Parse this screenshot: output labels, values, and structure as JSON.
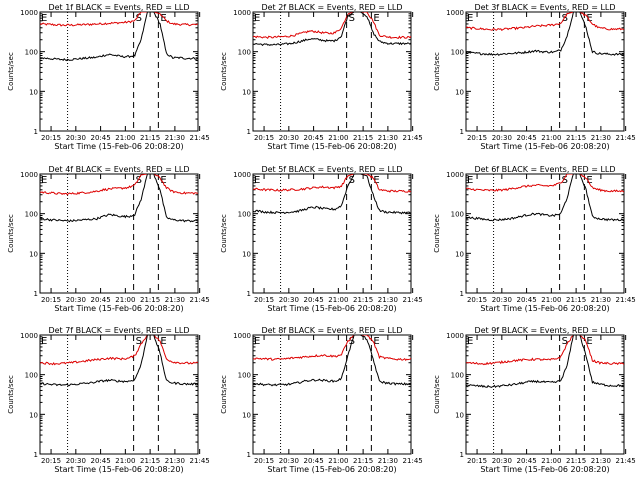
{
  "figure": {
    "x_label": "Start Time (15-Feb-06 20:08:20)",
    "y_label": "Counts/sec",
    "marker_labels": {
      "start": "S",
      "end": "E"
    },
    "colors": {
      "events": "#000000",
      "lld": "#dd0000",
      "axes": "#000000"
    }
  },
  "chart_data": [
    {
      "type": "line",
      "title": "Det 1f BLACK = Events, RED = LLD",
      "ylabel": "Counts/sec",
      "xlabel": "Start Time (15-Feb-06 20:08:20)",
      "y_scale": "log",
      "ylim": [
        1,
        1000
      ],
      "yticks": [
        "1",
        "10",
        "100",
        "1000"
      ],
      "x_minutes_range": [
        8.3,
        104
      ],
      "xticks": [
        "20:15",
        "20:30",
        "20:45",
        "21:00",
        "21:15",
        "21:30",
        "21:45"
      ],
      "vlines": {
        "dotted": [
          "20:25"
        ],
        "dashed": [
          "21:05",
          "21:20"
        ]
      },
      "peak": {
        "start": "21:06",
        "end": "21:20"
      },
      "series": [
        {
          "color": "#dd0000",
          "values": [
            500,
            490,
            480,
            470,
            465,
            470,
            475,
            480,
            490,
            500,
            510,
            520,
            530,
            540,
            560,
            600,
            1000,
            1000,
            1000,
            900,
            600,
            500,
            490,
            480,
            480,
            480
          ]
        },
        {
          "color": "#000000",
          "values": [
            70,
            68,
            66,
            64,
            63,
            64,
            66,
            68,
            70,
            72,
            80,
            85,
            80,
            75,
            75,
            80,
            200,
            1000,
            1000,
            500,
            90,
            70,
            70,
            68,
            68,
            68
          ]
        }
      ]
    },
    {
      "type": "line",
      "title": "Det 2f BLACK = Events, RED = LLD",
      "ylabel": "Counts/sec",
      "xlabel": "Start Time (15-Feb-06 20:08:20)",
      "y_scale": "log",
      "ylim": [
        1,
        1000
      ],
      "yticks": [
        "1",
        "10",
        "100",
        "1000"
      ],
      "x_minutes_range": [
        8.3,
        104
      ],
      "xticks": [
        "20:15",
        "20:30",
        "20:45",
        "21:00",
        "21:15",
        "21:30",
        "21:45"
      ],
      "vlines": {
        "dotted": [
          "20:25"
        ],
        "dashed": [
          "21:05",
          "21:20"
        ]
      },
      "peak": {
        "start": "21:04",
        "end": "21:20"
      },
      "series": [
        {
          "color": "#dd0000",
          "values": [
            240,
            235,
            230,
            230,
            235,
            240,
            250,
            270,
            300,
            330,
            320,
            300,
            290,
            300,
            400,
            900,
            1000,
            1000,
            1000,
            600,
            260,
            240,
            230,
            230,
            230,
            230
          ]
        },
        {
          "color": "#000000",
          "values": [
            160,
            155,
            150,
            150,
            150,
            155,
            160,
            175,
            190,
            210,
            205,
            195,
            185,
            190,
            250,
            800,
            1000,
            1000,
            800,
            300,
            180,
            165,
            160,
            160,
            160,
            160
          ]
        }
      ]
    },
    {
      "type": "line",
      "title": "Det 3f BLACK = Events, RED = LLD",
      "ylabel": "Counts/sec",
      "xlabel": "Start Time (15-Feb-06 20:08:20)",
      "y_scale": "log",
      "ylim": [
        1,
        1000
      ],
      "yticks": [
        "1",
        "10",
        "100",
        "1000"
      ],
      "x_minutes_range": [
        8.3,
        104
      ],
      "xticks": [
        "20:15",
        "20:30",
        "20:45",
        "21:00",
        "21:15",
        "21:30",
        "21:45"
      ],
      "vlines": {
        "dotted": [
          "20:25"
        ],
        "dashed": [
          "21:05",
          "21:20"
        ]
      },
      "peak": {
        "start": "21:06",
        "end": "21:20"
      },
      "series": [
        {
          "color": "#dd0000",
          "values": [
            400,
            390,
            380,
            370,
            360,
            365,
            370,
            380,
            390,
            400,
            420,
            440,
            450,
            460,
            480,
            520,
            900,
            1000,
            1000,
            800,
            500,
            400,
            380,
            370,
            370,
            370
          ]
        },
        {
          "color": "#000000",
          "values": [
            95,
            92,
            90,
            88,
            86,
            86,
            88,
            90,
            92,
            95,
            100,
            105,
            100,
            98,
            98,
            110,
            250,
            1000,
            1000,
            400,
            100,
            90,
            88,
            86,
            86,
            86
          ]
        }
      ]
    },
    {
      "type": "line",
      "title": "Det 4f BLACK = Events, RED = LLD",
      "ylabel": "Counts/sec",
      "xlabel": "Start Time (15-Feb-06 20:08:20)",
      "y_scale": "log",
      "ylim": [
        1,
        1000
      ],
      "yticks": [
        "1",
        "10",
        "100",
        "1000"
      ],
      "x_minutes_range": [
        8.3,
        104
      ],
      "xticks": [
        "20:15",
        "20:30",
        "20:45",
        "21:00",
        "21:15",
        "21:30",
        "21:45"
      ],
      "vlines": {
        "dotted": [
          "20:25"
        ],
        "dashed": [
          "21:05",
          "21:20"
        ]
      },
      "peak": {
        "start": "21:06",
        "end": "21:20"
      },
      "series": [
        {
          "color": "#dd0000",
          "values": [
            350,
            340,
            330,
            320,
            315,
            320,
            330,
            340,
            350,
            370,
            400,
            420,
            430,
            440,
            460,
            520,
            950,
            1000,
            1000,
            800,
            450,
            360,
            340,
            330,
            330,
            330
          ]
        },
        {
          "color": "#000000",
          "values": [
            75,
            72,
            70,
            68,
            66,
            66,
            68,
            70,
            72,
            75,
            85,
            95,
            90,
            85,
            85,
            95,
            230,
            1000,
            1000,
            400,
            80,
            70,
            68,
            66,
            66,
            66
          ]
        }
      ]
    },
    {
      "type": "line",
      "title": "Det 5f BLACK = Events, RED = LLD",
      "ylabel": "Counts/sec",
      "xlabel": "Start Time (15-Feb-06 20:08:20)",
      "y_scale": "log",
      "ylim": [
        1,
        1000
      ],
      "yticks": [
        "1",
        "10",
        "100",
        "1000"
      ],
      "x_minutes_range": [
        8.3,
        104
      ],
      "xticks": [
        "20:15",
        "20:30",
        "20:45",
        "21:00",
        "21:15",
        "21:30",
        "21:45"
      ],
      "vlines": {
        "dotted": [
          "20:25"
        ],
        "dashed": [
          "21:05",
          "21:20"
        ]
      },
      "peak": {
        "start": "21:04",
        "end": "21:20"
      },
      "series": [
        {
          "color": "#dd0000",
          "values": [
            420,
            410,
            400,
            395,
            390,
            395,
            400,
            410,
            420,
            440,
            460,
            470,
            460,
            450,
            500,
            900,
            1000,
            1000,
            1000,
            800,
            400,
            380,
            370,
            370,
            370,
            370
          ]
        },
        {
          "color": "#000000",
          "values": [
            120,
            115,
            110,
            108,
            106,
            108,
            110,
            115,
            125,
            140,
            145,
            135,
            130,
            130,
            160,
            500,
            1000,
            1000,
            900,
            300,
            120,
            110,
            108,
            106,
            106,
            106
          ]
        }
      ]
    },
    {
      "type": "line",
      "title": "Det 6f BLACK = Events, RED = LLD",
      "ylabel": "Counts/sec",
      "xlabel": "Start Time (15-Feb-06 20:08:20)",
      "y_scale": "log",
      "ylim": [
        1,
        1000
      ],
      "yticks": [
        "1",
        "10",
        "100",
        "1000"
      ],
      "x_minutes_range": [
        8.3,
        104
      ],
      "xticks": [
        "20:15",
        "20:30",
        "20:45",
        "21:00",
        "21:15",
        "21:30",
        "21:45"
      ],
      "vlines": {
        "dotted": [
          "20:25"
        ],
        "dashed": [
          "21:05",
          "21:20"
        ]
      },
      "peak": {
        "start": "21:06",
        "end": "21:20"
      },
      "series": [
        {
          "color": "#dd0000",
          "values": [
            420,
            410,
            400,
            390,
            385,
            390,
            400,
            420,
            450,
            480,
            500,
            520,
            510,
            500,
            520,
            600,
            1000,
            1000,
            1000,
            800,
            450,
            400,
            380,
            370,
            370,
            370
          ]
        },
        {
          "color": "#000000",
          "values": [
            80,
            78,
            75,
            72,
            70,
            70,
            72,
            75,
            80,
            88,
            95,
            100,
            95,
            90,
            90,
            100,
            250,
            1000,
            1000,
            400,
            85,
            75,
            72,
            70,
            70,
            70
          ]
        }
      ]
    },
    {
      "type": "line",
      "title": "Det 7f BLACK = Events, RED = LLD",
      "ylabel": "Counts/sec",
      "xlabel": "Start Time (15-Feb-06 20:08:20)",
      "y_scale": "log",
      "ylim": [
        1,
        1000
      ],
      "yticks": [
        "1",
        "10",
        "100",
        "1000"
      ],
      "x_minutes_range": [
        8.3,
        104
      ],
      "xticks": [
        "20:15",
        "20:30",
        "20:45",
        "21:00",
        "21:15",
        "21:30",
        "21:45"
      ],
      "vlines": {
        "dotted": [
          "20:25"
        ],
        "dashed": [
          "21:05",
          "21:20"
        ]
      },
      "peak": {
        "start": "21:06",
        "end": "21:20"
      },
      "series": [
        {
          "color": "#dd0000",
          "values": [
            200,
            195,
            190,
            190,
            195,
            200,
            210,
            220,
            230,
            240,
            250,
            260,
            255,
            250,
            260,
            300,
            600,
            1000,
            1000,
            700,
            250,
            210,
            200,
            195,
            195,
            195
          ]
        },
        {
          "color": "#000000",
          "values": [
            60,
            58,
            56,
            55,
            55,
            56,
            58,
            60,
            62,
            66,
            70,
            72,
            70,
            68,
            68,
            75,
            180,
            1000,
            1000,
            350,
            70,
            62,
            60,
            58,
            58,
            58
          ]
        }
      ]
    },
    {
      "type": "line",
      "title": "Det 8f BLACK = Events, RED = LLD",
      "ylabel": "Counts/sec",
      "xlabel": "Start Time (15-Feb-06 20:08:20)",
      "y_scale": "log",
      "ylim": [
        1,
        1000
      ],
      "yticks": [
        "1",
        "10",
        "100",
        "1000"
      ],
      "x_minutes_range": [
        8.3,
        104
      ],
      "xticks": [
        "20:15",
        "20:30",
        "20:45",
        "21:00",
        "21:15",
        "21:30",
        "21:45"
      ],
      "vlines": {
        "dotted": [
          "20:25"
        ],
        "dashed": [
          "21:05",
          "21:20"
        ]
      },
      "peak": {
        "start": "21:04",
        "end": "21:20"
      },
      "series": [
        {
          "color": "#dd0000",
          "values": [
            260,
            255,
            250,
            245,
            245,
            250,
            260,
            270,
            280,
            290,
            300,
            310,
            300,
            290,
            320,
            700,
            1000,
            1000,
            1000,
            700,
            280,
            260,
            250,
            245,
            245,
            245
          ]
        },
        {
          "color": "#000000",
          "values": [
            60,
            58,
            56,
            55,
            55,
            56,
            58,
            62,
            68,
            72,
            74,
            72,
            70,
            68,
            80,
            300,
            1000,
            1000,
            800,
            250,
            68,
            62,
            60,
            58,
            58,
            58
          ]
        }
      ]
    },
    {
      "type": "line",
      "title": "Det 9f BLACK = Events, RED = LLD",
      "ylabel": "Counts/sec",
      "xlabel": "Start Time (15-Feb-06 20:08:20)",
      "y_scale": "log",
      "ylim": [
        1,
        1000
      ],
      "yticks": [
        "1",
        "10",
        "100",
        "1000"
      ],
      "x_minutes_range": [
        8.3,
        104
      ],
      "xticks": [
        "20:15",
        "20:30",
        "20:45",
        "21:00",
        "21:15",
        "21:30",
        "21:45"
      ],
      "vlines": {
        "dotted": [
          "20:25"
        ],
        "dashed": [
          "21:05",
          "21:20"
        ]
      },
      "peak": {
        "start": "21:06",
        "end": "21:20"
      },
      "series": [
        {
          "color": "#dd0000",
          "values": [
            200,
            195,
            190,
            190,
            195,
            200,
            210,
            220,
            230,
            235,
            240,
            245,
            240,
            235,
            245,
            280,
            600,
            1000,
            1000,
            700,
            230,
            200,
            195,
            190,
            190,
            190
          ]
        },
        {
          "color": "#000000",
          "values": [
            55,
            53,
            52,
            50,
            50,
            51,
            53,
            55,
            58,
            62,
            66,
            68,
            66,
            64,
            64,
            70,
            170,
            1000,
            1000,
            300,
            65,
            58,
            55,
            53,
            53,
            53
          ]
        }
      ]
    }
  ]
}
